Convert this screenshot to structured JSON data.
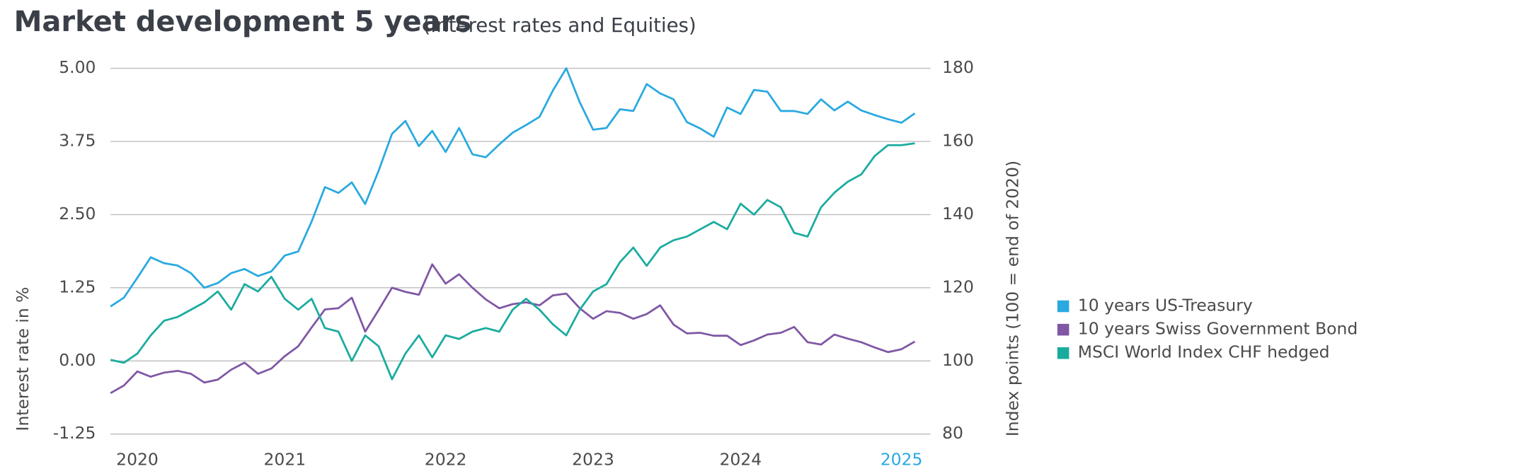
{
  "chart_data": {
    "type": "line",
    "title": "Market development 5 years",
    "subtitle": "(Interest rates and Equities)",
    "y_label": "Interest rate in %",
    "y2_label": "Index points (100 = end of 2020)",
    "categories": [
      null,
      null,
      "2020",
      null,
      null,
      null,
      null,
      null,
      null,
      null,
      null,
      null,
      null,
      "2021",
      null,
      null,
      null,
      null,
      null,
      null,
      null,
      null,
      null,
      null,
      null,
      "2022",
      null,
      null,
      null,
      null,
      null,
      null,
      null,
      null,
      null,
      null,
      "2023",
      null,
      null,
      null,
      null,
      null,
      null,
      null,
      null,
      null,
      null,
      "2024",
      null,
      null,
      null,
      null,
      null,
      null,
      null,
      null,
      null,
      null,
      null,
      "2025",
      null
    ],
    "highlight": {
      "index": 59,
      "color": "#29a9e0"
    },
    "ylim": [
      -1.25,
      5
    ],
    "yticks": [
      {
        "value": -1.25,
        "label": "-1.25"
      },
      {
        "value": 0,
        "label": "0.00"
      },
      {
        "value": 1.25,
        "label": "1.25"
      },
      {
        "value": 2.5,
        "label": "2.50"
      },
      {
        "value": 3.75,
        "label": "3.75"
      },
      {
        "value": 5,
        "label": "5.00"
      }
    ],
    "y2lim": [
      80,
      180
    ],
    "y2ticks": [
      80,
      100,
      120,
      140,
      160,
      180
    ],
    "grid": true,
    "legend": "right",
    "series": [
      {
        "name": "10 years US-Treasury",
        "color": "#29a9e0",
        "values": [
          0.93,
          1.08,
          1.42,
          1.77,
          1.67,
          1.63,
          1.5,
          1.25,
          1.33,
          1.5,
          1.57,
          1.45,
          1.53,
          1.8,
          1.87,
          2.38,
          2.97,
          2.87,
          3.05,
          2.68,
          3.25,
          3.88,
          4.1,
          3.67,
          3.93,
          3.57,
          3.98,
          3.53,
          3.48,
          3.7,
          3.9,
          4.03,
          4.17,
          4.62,
          5.0,
          4.42,
          3.95,
          3.98,
          4.3,
          4.27,
          4.73,
          4.57,
          4.47,
          4.08,
          3.97,
          3.83,
          4.33,
          4.22,
          4.63,
          4.6,
          4.27,
          4.27,
          4.22,
          4.47,
          4.28,
          4.43,
          4.28,
          4.2,
          4.13,
          4.07,
          4.23
        ]
      },
      {
        "name": "10 years Swiss Government Bond",
        "color": "#7f57a5",
        "values": [
          -0.55,
          -0.42,
          -0.18,
          -0.27,
          -0.2,
          -0.17,
          -0.22,
          -0.37,
          -0.32,
          -0.15,
          -0.03,
          -0.22,
          -0.13,
          0.08,
          0.25,
          0.57,
          0.88,
          0.9,
          1.08,
          0.5,
          0.87,
          1.25,
          1.18,
          1.13,
          1.65,
          1.32,
          1.48,
          1.25,
          1.05,
          0.9,
          0.97,
          1.0,
          0.95,
          1.12,
          1.15,
          0.9,
          0.72,
          0.85,
          0.82,
          0.72,
          0.8,
          0.95,
          0.62,
          0.47,
          0.48,
          0.43,
          0.43,
          0.27,
          0.35,
          0.45,
          0.48,
          0.58,
          0.32,
          0.28,
          0.45,
          0.38,
          0.32,
          0.23,
          0.15,
          0.2,
          0.33
        ]
      },
      {
        "name": "MSCI World Index CHF hedged",
        "color": "#1aab9f",
        "axis": "y2",
        "values": [
          100.3,
          99.5,
          102,
          107,
          111,
          112,
          114,
          116,
          119,
          114,
          121,
          119,
          123,
          117,
          114,
          117,
          109,
          108,
          100,
          107,
          104,
          95,
          102,
          107,
          101,
          107,
          106,
          108,
          109,
          108,
          114,
          117,
          114,
          110,
          107,
          114,
          119,
          121,
          127,
          131,
          126,
          131,
          133,
          134,
          136,
          138,
          136,
          143,
          140,
          144,
          142,
          135,
          134,
          142,
          146,
          149,
          151,
          156,
          159,
          159,
          159.5
        ]
      }
    ]
  }
}
